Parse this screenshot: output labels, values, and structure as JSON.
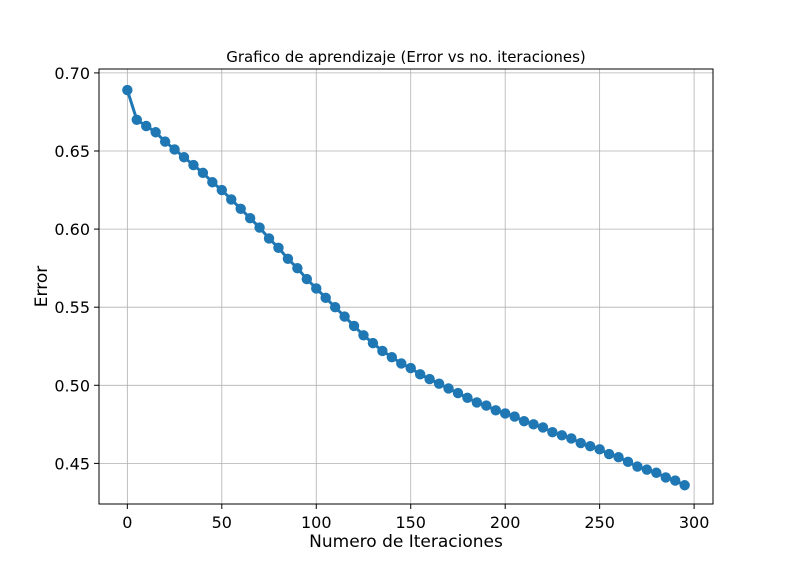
{
  "chart_data": {
    "type": "line",
    "title": "Grafico de aprendizaje (Error vs no. iteraciones)",
    "xlabel": "Numero de Iteraciones",
    "ylabel": "Error",
    "xlim": [
      -15,
      310
    ],
    "ylim": [
      0.424,
      0.7025
    ],
    "xticks": [
      0,
      50,
      100,
      150,
      200,
      250,
      300
    ],
    "yticks": [
      0.45,
      0.5,
      0.55,
      0.6,
      0.65,
      0.7
    ],
    "ytick_labels": [
      "0.45",
      "0.50",
      "0.55",
      "0.60",
      "0.65",
      "0.70"
    ],
    "grid": true,
    "line_color": "#1f77b4",
    "marker": "circle",
    "series": [
      {
        "x": [
          0,
          5,
          10,
          15,
          20,
          25,
          30,
          35,
          40,
          45,
          50,
          55,
          60,
          65,
          70,
          75,
          80,
          85,
          90,
          95,
          100,
          105,
          110,
          115,
          120,
          125,
          130,
          135,
          140,
          145,
          150,
          155,
          160,
          165,
          170,
          175,
          180,
          185,
          190,
          195,
          200,
          205,
          210,
          215,
          220,
          225,
          230,
          235,
          240,
          245,
          250,
          255,
          260,
          265,
          270,
          275,
          280,
          285,
          290,
          295
        ],
        "values": [
          0.689,
          0.67,
          0.666,
          0.662,
          0.656,
          0.651,
          0.646,
          0.641,
          0.636,
          0.63,
          0.625,
          0.619,
          0.613,
          0.607,
          0.601,
          0.594,
          0.588,
          0.581,
          0.575,
          0.568,
          0.562,
          0.556,
          0.55,
          0.544,
          0.538,
          0.532,
          0.527,
          0.522,
          0.518,
          0.514,
          0.511,
          0.507,
          0.504,
          0.501,
          0.498,
          0.495,
          0.492,
          0.489,
          0.487,
          0.484,
          0.482,
          0.48,
          0.477,
          0.475,
          0.473,
          0.47,
          0.468,
          0.466,
          0.463,
          0.461,
          0.459,
          0.456,
          0.454,
          0.451,
          0.448,
          0.446,
          0.444,
          0.441,
          0.439,
          0.436
        ]
      }
    ]
  }
}
